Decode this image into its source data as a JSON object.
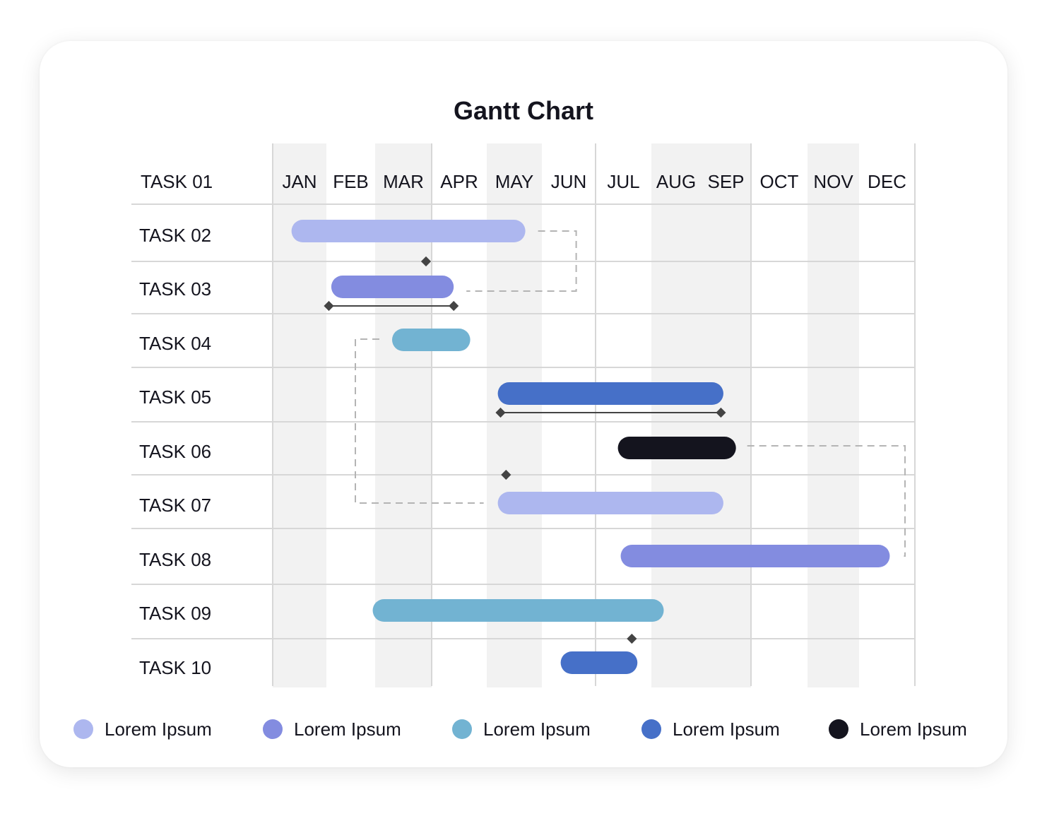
{
  "chart_data": {
    "type": "gantt",
    "title": "Gantt Chart",
    "months": [
      "JAN",
      "FEB",
      "MAR",
      "APR",
      "MAY",
      "JUN",
      "JUL",
      "AUG",
      "SEP",
      "OCT",
      "NOV",
      "DEC"
    ],
    "header_task": "TASK 01",
    "tasks": [
      {
        "label": "TASK 02",
        "start": 0.35,
        "end": 4.7,
        "series": 0
      },
      {
        "label": "TASK 03",
        "start": 1.1,
        "end": 3.4,
        "series": 1
      },
      {
        "label": "TASK 04",
        "start": 2.3,
        "end": 3.7,
        "series": 2
      },
      {
        "label": "TASK 05",
        "start": 4.2,
        "end": 8.45,
        "series": 3
      },
      {
        "label": "TASK 06",
        "start": 6.4,
        "end": 8.7,
        "series": 4
      },
      {
        "label": "TASK 07",
        "start": 4.2,
        "end": 8.45,
        "series": 0
      },
      {
        "label": "TASK 08",
        "start": 6.45,
        "end": 11.55,
        "series": 1
      },
      {
        "label": "TASK 09",
        "start": 1.95,
        "end": 7.25,
        "series": 2
      },
      {
        "label": "TASK 10",
        "start": 5.35,
        "end": 6.75,
        "series": 3
      }
    ],
    "milestones": [
      {
        "row": 1,
        "month": 2.9
      },
      {
        "row": 5,
        "month": 4.35
      },
      {
        "row": 8,
        "month": 6.65
      }
    ],
    "ranges": [
      {
        "task": 1,
        "start": 1.05,
        "end": 3.4
      },
      {
        "task": 3,
        "start": 4.25,
        "end": 8.4
      }
    ],
    "dependencies": [
      {
        "from": 0,
        "to": 1
      },
      {
        "from": 2,
        "to": 5
      },
      {
        "from": 4,
        "to": 6
      }
    ],
    "series": [
      {
        "name": "Lorem Ipsum",
        "color": "#adb7ef"
      },
      {
        "name": "Lorem Ipsum",
        "color": "#838ce0"
      },
      {
        "name": "Lorem Ipsum",
        "color": "#72b3d2"
      },
      {
        "name": "Lorem Ipsum",
        "color": "#4670c8"
      },
      {
        "name": "Lorem Ipsum",
        "color": "#14141e"
      }
    ],
    "shaded_months": [
      0,
      2,
      4,
      7,
      8,
      10
    ],
    "quarter_lines": [
      0,
      3,
      6,
      9,
      12
    ],
    "grid_color": "#d7d7d7",
    "shade_color": "#f2f2f2"
  }
}
